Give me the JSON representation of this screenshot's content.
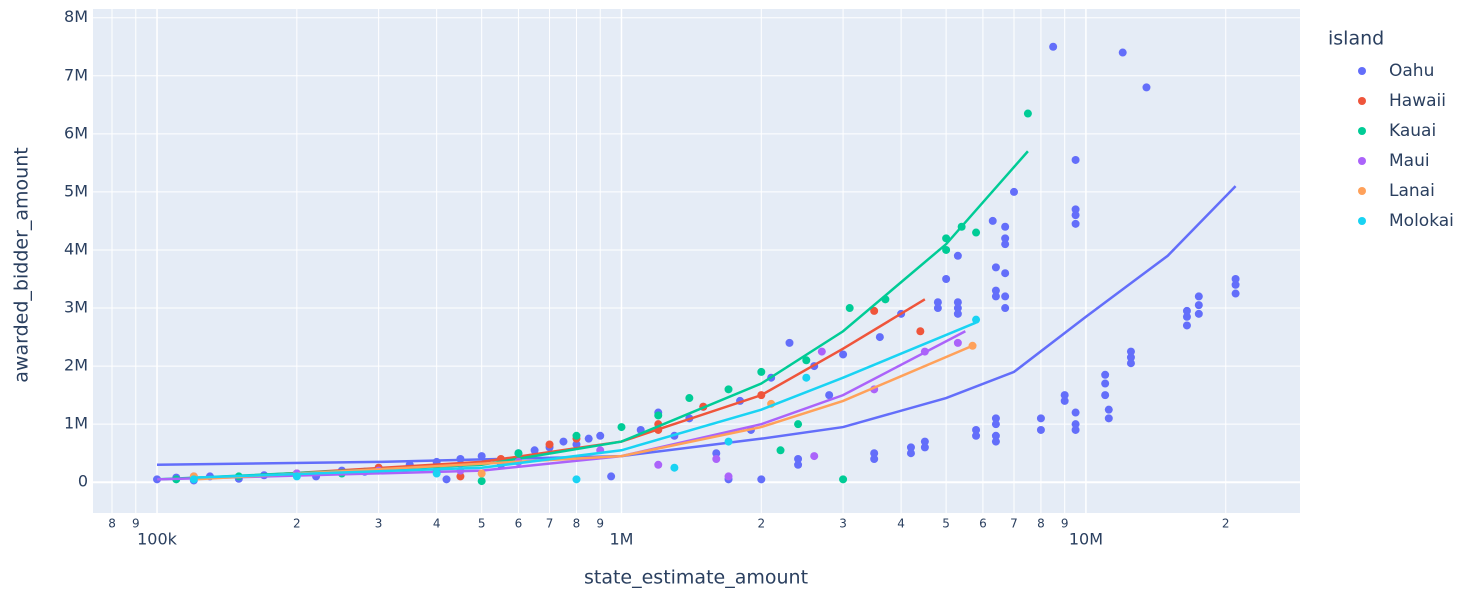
{
  "chart_data": {
    "type": "scatter",
    "x_label": "state_estimate_amount",
    "y_label": "awarded_bidder_amount",
    "legend_title": "island",
    "legend_position": "right",
    "log_x": true,
    "grid": true,
    "xlim": [
      72800,
      28900000
    ],
    "ylim": [
      -530000,
      8150000
    ],
    "xticks": [
      {
        "value": 80000,
        "label": "8"
      },
      {
        "value": 90000,
        "label": "9"
      },
      {
        "value": 100000,
        "label": "100k"
      },
      {
        "value": 200000,
        "label": "2"
      },
      {
        "value": 300000,
        "label": "3"
      },
      {
        "value": 400000,
        "label": "4"
      },
      {
        "value": 500000,
        "label": "5"
      },
      {
        "value": 600000,
        "label": "6"
      },
      {
        "value": 700000,
        "label": "7"
      },
      {
        "value": 800000,
        "label": "8"
      },
      {
        "value": 900000,
        "label": "9"
      },
      {
        "value": 1000000,
        "label": "1M"
      },
      {
        "value": 2000000,
        "label": "2"
      },
      {
        "value": 3000000,
        "label": "3"
      },
      {
        "value": 4000000,
        "label": "4"
      },
      {
        "value": 5000000,
        "label": "5"
      },
      {
        "value": 6000000,
        "label": "6"
      },
      {
        "value": 7000000,
        "label": "7"
      },
      {
        "value": 8000000,
        "label": "8"
      },
      {
        "value": 9000000,
        "label": "9"
      },
      {
        "value": 10000000,
        "label": "10M"
      },
      {
        "value": 20000000,
        "label": "2"
      }
    ],
    "yticks": [
      0,
      {
        "value": 1000000,
        "label": "1M"
      },
      {
        "value": 2000000,
        "label": "2M"
      },
      {
        "value": 3000000,
        "label": "3M"
      },
      {
        "value": 4000000,
        "label": "4M"
      },
      {
        "value": 5000000,
        "label": "5M"
      },
      {
        "value": 6000000,
        "label": "6M"
      },
      {
        "value": 7000000,
        "label": "7M"
      },
      {
        "value": 8000000,
        "label": "8M"
      }
    ],
    "series": [
      {
        "name": "Oahu",
        "color": "#636efa",
        "x": [
          100000,
          110000,
          120000,
          130000,
          150000,
          170000,
          200000,
          220000,
          250000,
          280000,
          300000,
          350000,
          400000,
          420000,
          450000,
          500000,
          550000,
          600000,
          650000,
          700000,
          750000,
          800000,
          850000,
          900000,
          950000,
          1100000,
          1200000,
          1300000,
          1400000,
          1500000,
          1600000,
          1700000,
          1800000,
          1900000,
          2000000,
          2100000,
          2300000,
          2400000,
          2400000,
          2600000,
          2800000,
          3000000,
          3500000,
          3500000,
          3600000,
          4000000,
          4200000,
          4200000,
          4500000,
          4500000,
          4800000,
          4800000,
          5000000,
          5300000,
          5300000,
          5300000,
          5300000,
          5800000,
          5800000,
          6300000,
          6400000,
          6400000,
          6400000,
          6400000,
          6400000,
          6400000,
          6400000,
          6700000,
          6700000,
          6700000,
          6700000,
          6700000,
          6700000,
          7000000,
          8000000,
          8000000,
          8500000,
          9000000,
          9000000,
          9500000,
          9500000,
          9500000,
          9500000,
          9500000,
          9500000,
          9500000,
          11000000,
          11000000,
          11000000,
          11200000,
          11200000,
          12000000,
          12500000,
          12500000,
          12500000,
          13500000,
          16500000,
          16500000,
          16500000,
          17500000,
          17500000,
          17500000,
          21000000,
          21000000,
          21000000
        ],
        "values": [
          50000,
          80000,
          30000,
          100000,
          60000,
          120000,
          150000,
          100000,
          200000,
          180000,
          250000,
          300000,
          350000,
          50000,
          400000,
          450000,
          300000,
          500000,
          550000,
          600000,
          700000,
          650000,
          750000,
          800000,
          100000,
          900000,
          1200000,
          800000,
          1100000,
          1300000,
          500000,
          50000,
          1400000,
          900000,
          50000,
          1800000,
          2400000,
          400000,
          300000,
          2000000,
          1500000,
          2200000,
          500000,
          400000,
          2500000,
          2900000,
          600000,
          500000,
          700000,
          600000,
          3100000,
          3000000,
          3500000,
          3900000,
          3100000,
          3000000,
          2900000,
          900000,
          800000,
          4500000,
          3700000,
          3300000,
          3200000,
          1100000,
          1000000,
          800000,
          700000,
          4400000,
          4200000,
          4100000,
          3600000,
          3200000,
          3000000,
          5000000,
          1100000,
          900000,
          7500000,
          1500000,
          1400000,
          5550000,
          4700000,
          4600000,
          4450000,
          1200000,
          1000000,
          900000,
          1850000,
          1700000,
          1500000,
          1250000,
          1100000,
          7400000,
          2250000,
          2150000,
          2050000,
          6800000,
          2950000,
          2850000,
          2700000,
          3200000,
          3050000,
          2900000,
          3500000,
          3400000,
          3250000
        ],
        "trend_x": [
          100000,
          300000,
          1000000,
          2000000,
          3000000,
          5000000,
          7000000,
          10000000,
          15000000,
          21000000
        ],
        "trend_values": [
          300000,
          350000,
          450000,
          750000,
          950000,
          1450000,
          1900000,
          2850000,
          3900000,
          5100000
        ]
      },
      {
        "name": "Hawaii",
        "color": "#EF553B",
        "x": [
          200000,
          300000,
          450000,
          550000,
          700000,
          800000,
          1200000,
          1200000,
          1500000,
          2000000,
          3500000,
          4400000
        ],
        "values": [
          150000,
          250000,
          100000,
          400000,
          650000,
          750000,
          1000000,
          900000,
          1300000,
          1500000,
          2950000,
          2600000
        ],
        "trend_x": [
          150000,
          500000,
          1000000,
          2000000,
          3000000,
          4500000
        ],
        "trend_values": [
          100000,
          350000,
          700000,
          1500000,
          2300000,
          3150000
        ]
      },
      {
        "name": "Kauai",
        "color": "#00cc96",
        "x": [
          110000,
          150000,
          250000,
          400000,
          500000,
          600000,
          800000,
          1000000,
          1200000,
          1400000,
          1700000,
          2000000,
          2200000,
          2400000,
          2500000,
          3000000,
          3100000,
          3700000,
          5000000,
          5000000,
          5400000,
          5800000,
          7500000
        ],
        "values": [
          50000,
          100000,
          150000,
          200000,
          20000,
          500000,
          800000,
          950000,
          1150000,
          1450000,
          1600000,
          1900000,
          550000,
          1000000,
          2100000,
          50000,
          3000000,
          3150000,
          4200000,
          4000000,
          4400000,
          4300000,
          6350000
        ],
        "trend_x": [
          100000,
          500000,
          1000000,
          2000000,
          3000000,
          5000000,
          7500000
        ],
        "trend_values": [
          50000,
          300000,
          700000,
          1700000,
          2600000,
          4100000,
          5700000
        ]
      },
      {
        "name": "Maui",
        "color": "#ab63fa",
        "x": [
          120000,
          200000,
          300000,
          450000,
          600000,
          900000,
          1200000,
          1600000,
          1700000,
          2600000,
          2700000,
          3500000,
          4500000,
          5300000
        ],
        "values": [
          100000,
          150000,
          200000,
          200000,
          350000,
          550000,
          300000,
          400000,
          100000,
          450000,
          2250000,
          1600000,
          2250000,
          2400000
        ],
        "trend_x": [
          100000,
          500000,
          1000000,
          2000000,
          3000000,
          5500000
        ],
        "trend_values": [
          50000,
          200000,
          450000,
          1000000,
          1500000,
          2600000
        ]
      },
      {
        "name": "Lanai",
        "color": "#FFA15A",
        "x": [
          120000,
          500000,
          2100000,
          5700000
        ],
        "values": [
          100000,
          150000,
          1350000,
          2350000
        ],
        "trend_x": [
          120000,
          1000000,
          2000000,
          3000000,
          5700000
        ],
        "trend_values": [
          50000,
          450000,
          950000,
          1400000,
          2350000
        ]
      },
      {
        "name": "Molokai",
        "color": "#19d3f3",
        "x": [
          120000,
          200000,
          400000,
          800000,
          1300000,
          1700000,
          2500000,
          5800000
        ],
        "values": [
          50000,
          100000,
          150000,
          50000,
          250000,
          700000,
          1800000,
          2800000
        ],
        "trend_x": [
          120000,
          500000,
          1000000,
          2000000,
          3000000,
          5800000
        ],
        "trend_values": [
          80000,
          250000,
          550000,
          1250000,
          1800000,
          2750000
        ]
      }
    ]
  }
}
